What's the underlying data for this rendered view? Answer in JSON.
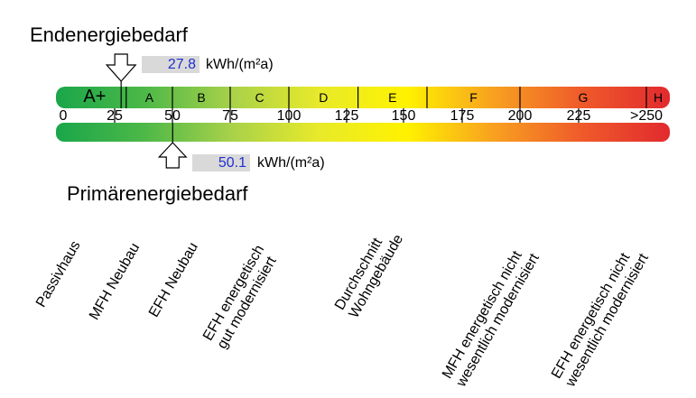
{
  "chart_data": {
    "type": "energy-scale",
    "title_top": "Endenergiebedarf",
    "title_bottom": "Primärenergiebedarf",
    "scale_ticks": [
      "0",
      "25",
      "50",
      "75",
      "100",
      "125",
      "150",
      "175",
      "200",
      "225",
      ">250"
    ],
    "classes": [
      {
        "label": "A+",
        "from": 0,
        "to": 30
      },
      {
        "label": "A",
        "from": 30,
        "to": 50
      },
      {
        "label": "B",
        "from": 50,
        "to": 75
      },
      {
        "label": "C",
        "from": 75,
        "to": 100
      },
      {
        "label": "D",
        "from": 100,
        "to": 130
      },
      {
        "label": "E",
        "from": 130,
        "to": 160
      },
      {
        "label": "F",
        "from": 160,
        "to": 200
      },
      {
        "label": "G",
        "from": 200,
        "to": 250
      },
      {
        "label": "H",
        "from": 250,
        "to": 260
      }
    ],
    "end_energy": {
      "value": 27.8,
      "label": "27.8",
      "unit": "kWh/(m²a)"
    },
    "primary_energy": {
      "value": 50.1,
      "label": "50.1",
      "unit": "kWh/(m²a)"
    },
    "gradient_colors": [
      "#1aa64a",
      "#4cb848",
      "#a8d14a",
      "#e8ea2a",
      "#fff200",
      "#f8a020",
      "#ef5a2a",
      "#e12a2e"
    ],
    "categories": [
      {
        "lines": [
          "Passivhaus"
        ]
      },
      {
        "lines": [
          "MFH Neubau"
        ]
      },
      {
        "lines": [
          "EFH Neubau"
        ]
      },
      {
        "lines": [
          "EFH energetisch",
          "gut modernisiert"
        ]
      },
      {
        "lines": [
          "Durchschnitt",
          "Wohngebäude"
        ]
      },
      {
        "lines": [
          "MFH energetisch nicht",
          "wesentlich modernisiert"
        ]
      },
      {
        "lines": [
          "EFH energetisch nicht",
          "wesentlich modernisiert"
        ]
      }
    ]
  }
}
